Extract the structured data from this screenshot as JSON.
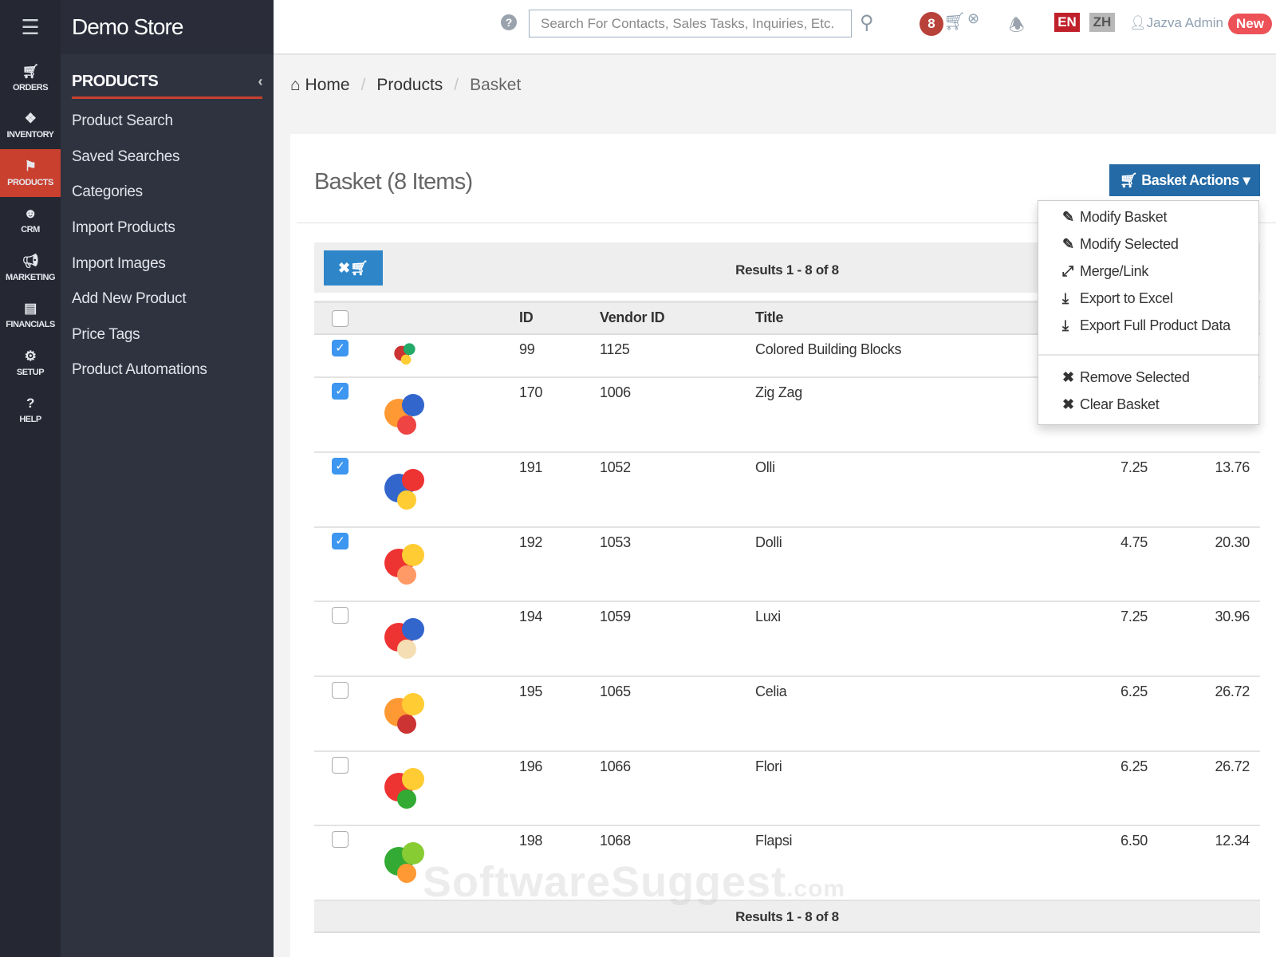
{
  "rail": {
    "menu_icon": "hamburger-icon",
    "items": [
      {
        "label": "ORDERS",
        "icon": "cart-icon"
      },
      {
        "label": "INVENTORY",
        "icon": "cubes-icon"
      },
      {
        "label": "PRODUCTS",
        "icon": "tags-icon",
        "active": true
      },
      {
        "label": "CRM",
        "icon": "users-icon"
      },
      {
        "label": "MARKETING",
        "icon": "bullhorn-icon"
      },
      {
        "label": "FINANCIALS",
        "icon": "bar-chart-icon"
      },
      {
        "label": "SETUP",
        "icon": "gear-icon"
      },
      {
        "label": "HELP",
        "icon": "question-icon"
      }
    ]
  },
  "panel": {
    "store_name": "Demo Store",
    "section": "PRODUCTS",
    "items": [
      "Product Search",
      "Saved Searches",
      "Categories",
      "Import Products",
      "Import Images",
      "Add New Product",
      "Price Tags",
      "Product Automations"
    ]
  },
  "topbar": {
    "search_placeholder": "Search For Contacts, Sales Tasks, Inquiries, Etc.",
    "basket_count": "8",
    "lang_en": "EN",
    "lang_zh": "ZH",
    "user": "Jazva Admin",
    "new_badge": "New"
  },
  "breadcrumb": [
    "Home",
    "Products",
    "Basket"
  ],
  "main": {
    "title": "Basket (8 Items)",
    "basket_actions": "Basket Actions",
    "results": "Results 1 - 8 of 8",
    "columns": [
      "ID",
      "Vendor ID",
      "Title"
    ],
    "rows": [
      {
        "checked": true,
        "id": "99",
        "vendor_id": "1125",
        "title": "Colored Building Blocks",
        "p1": "",
        "p2": ""
      },
      {
        "checked": true,
        "id": "170",
        "vendor_id": "1006",
        "title": "Zig Zag",
        "p1": "",
        "p2": ""
      },
      {
        "checked": true,
        "id": "191",
        "vendor_id": "1052",
        "title": "Olli",
        "p1": "7.25",
        "p2": "13.76"
      },
      {
        "checked": true,
        "id": "192",
        "vendor_id": "1053",
        "title": "Dolli",
        "p1": "4.75",
        "p2": "20.30"
      },
      {
        "checked": false,
        "id": "194",
        "vendor_id": "1059",
        "title": "Luxi",
        "p1": "7.25",
        "p2": "30.96"
      },
      {
        "checked": false,
        "id": "195",
        "vendor_id": "1065",
        "title": "Celia",
        "p1": "6.25",
        "p2": "26.72"
      },
      {
        "checked": false,
        "id": "196",
        "vendor_id": "1066",
        "title": "Flori",
        "p1": "6.25",
        "p2": "26.72"
      },
      {
        "checked": false,
        "id": "198",
        "vendor_id": "1068",
        "title": "Flapsi",
        "p1": "6.50",
        "p2": "12.34"
      }
    ]
  },
  "dropdown": {
    "items": [
      {
        "label": "Modify Basket",
        "icon": "edit-icon"
      },
      {
        "label": "Modify Selected",
        "icon": "edit-icon"
      },
      {
        "label": "Merge/Link",
        "icon": "compress-icon"
      },
      {
        "label": "Export to Excel",
        "icon": "download-icon"
      },
      {
        "label": "Export Full Product Data",
        "icon": "download-icon"
      },
      {
        "label": "Remove Selected",
        "icon": "times-icon"
      },
      {
        "label": "Clear Basket",
        "icon": "times-icon"
      }
    ]
  },
  "watermark": "SoftwareSuggest.com",
  "colors": {
    "accent_red": "#c9402f",
    "primary_blue": "#236aa6",
    "checkbox_blue": "#3d96ef"
  }
}
